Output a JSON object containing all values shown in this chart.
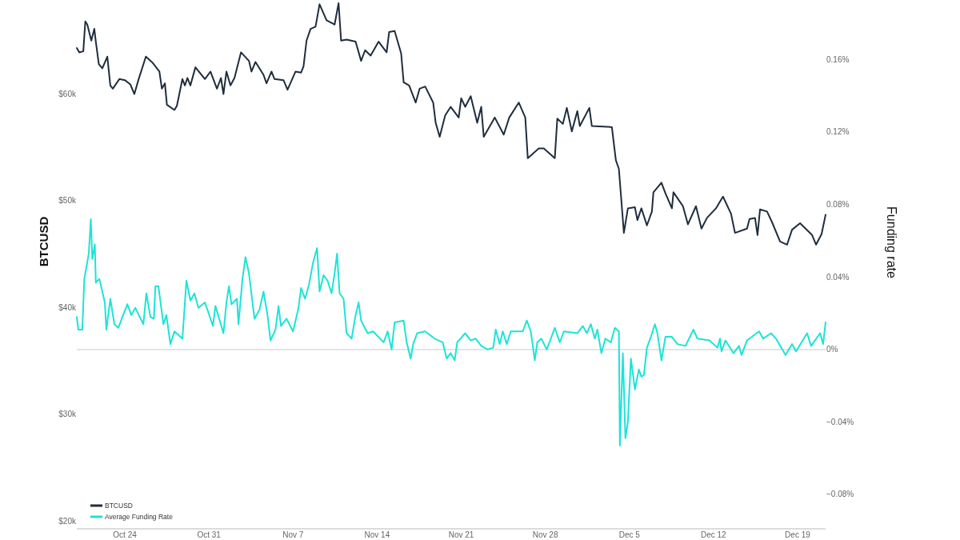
{
  "chart_data": {
    "type": "line",
    "ylabel": "BTCUSD",
    "y2label": "Funding rate",
    "legend": "bottom left",
    "xlim": [
      "--10-20T00:00",
      "--12-21T08:00"
    ],
    "xticks": [
      {
        "value": "--10-24",
        "label": "Oct 24"
      },
      {
        "value": "--10-31",
        "label": "Oct 31"
      },
      {
        "value": "--11-07",
        "label": "Nov 7"
      },
      {
        "value": "--11-14",
        "label": "Nov 14"
      },
      {
        "value": "--11-21",
        "label": "Nov 21"
      },
      {
        "value": "--11-28",
        "label": "Nov 28"
      },
      {
        "value": "--12-05",
        "label": "Dec 5"
      },
      {
        "value": "--12-12",
        "label": "Dec 12"
      },
      {
        "value": "--12-19",
        "label": "Dec 19"
      }
    ],
    "ylim": [
      19300,
      68800
    ],
    "yticks": [
      {
        "value": 20000,
        "label": "$20k"
      },
      {
        "value": 30000,
        "label": "$30k"
      },
      {
        "value": 40000,
        "label": "$40k"
      },
      {
        "value": 50000,
        "label": "$50k"
      },
      {
        "value": 60000,
        "label": "$60k"
      }
    ],
    "y2lim": [
      -0.099,
      0.193
    ],
    "y2ticks": [
      {
        "value": -0.08,
        "label": "−0.08%"
      },
      {
        "value": -0.04,
        "label": "−0.04%"
      },
      {
        "value": 0,
        "label": "0%"
      },
      {
        "value": 0.04,
        "label": "0.04%"
      },
      {
        "value": 0.08,
        "label": "0.08%"
      },
      {
        "value": 0.12,
        "label": "0.12%"
      },
      {
        "value": 0.16,
        "label": "0.16%"
      }
    ],
    "ref_lines": [
      {
        "axis": "y2",
        "value": 0,
        "color": "#e4e4e4"
      }
    ],
    "series": [
      {
        "name": "BTCUSD",
        "color": "#1f2d3d",
        "x": [
          "--10-20T00:00",
          "--10-20T05:00",
          "--10-20T13:00",
          "--10-20T17:00",
          "--10-20T21:00",
          "--10-21T05:00",
          "--10-21T11:00",
          "--10-21T14:00",
          "--10-21T20:00",
          "--10-22T03:00",
          "--10-22T13:00",
          "--10-22T19:00",
          "--10-23T00:00",
          "--10-23T13:00",
          "--10-24T00:00",
          "--10-24T11:00",
          "--10-24T19:00",
          "--10-25T03:00",
          "--10-25T18:00",
          "--10-26T08:00",
          "--10-26T21:00",
          "--10-27T02:00",
          "--10-27T08:00",
          "--10-27T12:00",
          "--10-28T03:00",
          "--10-28T08:00",
          "--10-28T19:00",
          "--10-29T00:00",
          "--10-29T05:00",
          "--10-29T11:00",
          "--10-29T21:00",
          "--10-30T16:00",
          "--10-31T03:00",
          "--10-31T16:00",
          "--11-01T00:00",
          "--11-01T05:00",
          "--11-01T11:00",
          "--11-01T19:00",
          "--11-02T03:00",
          "--11-02T16:00",
          "--11-03T08:00",
          "--11-03T13:00",
          "--11-03T21:00",
          "--11-04T13:00",
          "--11-04T19:00",
          "--11-05T05:00",
          "--11-05T11:00",
          "--11-06T05:00",
          "--11-06T13:00",
          "--11-07T05:00",
          "--11-07T16:00",
          "--11-07T21:00",
          "--11-08T03:00",
          "--11-08T11:00",
          "--11-08T21:00",
          "--11-09T05:00",
          "--11-09T19:00",
          "--11-10T11:00",
          "--11-10T19:00",
          "--11-11T00:00",
          "--11-11T11:00",
          "--11-12T05:00",
          "--11-12T16:00",
          "--11-13T00:00",
          "--11-13T11:00",
          "--11-14T03:00",
          "--11-14T19:00",
          "--11-15T00:00",
          "--11-15T11:00",
          "--11-16T00:00",
          "--11-16T05:00",
          "--11-16T16:00",
          "--11-17T05:00",
          "--11-17T13:00",
          "--11-18T00:00",
          "--11-18T16:00",
          "--11-18T21:00",
          "--11-19T05:00",
          "--11-19T16:00",
          "--11-20T03:00",
          "--11-20T19:00",
          "--11-21T00:00",
          "--11-21T08:00",
          "--11-21T19:00",
          "--11-22T08:00",
          "--11-22T16:00",
          "--11-22T21:00",
          "--11-23T19:00",
          "--11-24T13:00",
          "--11-25T00:00",
          "--11-25T19:00",
          "--11-26T08:00",
          "--11-26T13:00",
          "--11-27T11:00",
          "--11-27T21:00",
          "--11-28T19:00",
          "--11-29T00:00",
          "--11-29T11:00",
          "--11-29T19:00",
          "--11-30T05:00",
          "--11-30T16:00",
          "--11-30T21:00",
          "--12-01T16:00",
          "--12-01T21:00",
          "--12-03T13:00",
          "--12-03T21:00",
          "--12-04T03:00",
          "--12-04T13:00",
          "--12-04T21:00",
          "--12-05T11:00",
          "--12-05T16:00",
          "--12-06T00:00",
          "--12-06T11:00",
          "--12-06T21:00",
          "--12-07T00:00",
          "--12-07T16:00",
          "--12-08T00:00",
          "--12-08T13:00",
          "--12-08T16:00",
          "--12-09T11:00",
          "--12-09T21:00",
          "--12-10T13:00",
          "--12-11T00:00",
          "--12-11T11:00",
          "--12-12T05:00",
          "--12-12T19:00",
          "--12-13T11:00",
          "--12-13T19:00",
          "--12-14T19:00",
          "--12-15T00:00",
          "--12-15T11:00",
          "--12-15T16:00",
          "--12-15T21:00",
          "--12-16T11:00",
          "--12-16T21:00",
          "--12-17T13:00",
          "--12-18T03:00",
          "--12-18T13:00",
          "--12-19T05:00",
          "--12-20T05:00",
          "--12-20T13:00",
          "--12-21T00:00",
          "--12-21T08:00"
        ],
        "values": [
          64300,
          63900,
          64000,
          66800,
          66500,
          65000,
          66100,
          64900,
          62800,
          62400,
          63500,
          60800,
          60500,
          61400,
          61300,
          60900,
          60000,
          61300,
          63500,
          62900,
          62100,
          60500,
          61000,
          59000,
          58500,
          58900,
          61400,
          60800,
          61500,
          60800,
          62500,
          61400,
          62100,
          60500,
          61500,
          60000,
          62100,
          60800,
          61500,
          63900,
          63100,
          62100,
          63000,
          61800,
          61000,
          62100,
          61400,
          61300,
          60400,
          62100,
          62000,
          62600,
          65000,
          66100,
          66300,
          68400,
          66900,
          66500,
          68500,
          65000,
          65100,
          64900,
          63100,
          64100,
          63600,
          64900,
          63900,
          65800,
          65900,
          63800,
          61100,
          60800,
          59200,
          60500,
          60700,
          59200,
          57300,
          56000,
          58000,
          58800,
          57800,
          59600,
          58800,
          59800,
          57300,
          58800,
          56000,
          57800,
          56200,
          57800,
          59200,
          57800,
          54000,
          54900,
          54900,
          54000,
          57700,
          57200,
          58700,
          56500,
          58400,
          57000,
          58700,
          57000,
          56900,
          53800,
          53000,
          47000,
          49300,
          49400,
          48200,
          49300,
          47700,
          49000,
          50800,
          51700,
          50700,
          49300,
          50800,
          49500,
          47800,
          49500,
          47400,
          48400,
          49300,
          50400,
          48800,
          47000,
          47400,
          48300,
          48400,
          46800,
          49200,
          49000,
          48000,
          46200,
          45900,
          47300,
          47900,
          46800,
          45900,
          46900,
          48700
        ]
      },
      {
        "name": "Average Funding Rate",
        "color": "#1ce4d6",
        "axis": "y2",
        "x": [
          "--10-20T00:00",
          "--10-20T03:00",
          "--10-20T11:00",
          "--10-20T15:00",
          "--10-21T00:00",
          "--10-21T04:00",
          "--10-21T07:00",
          "--10-21T12:00",
          "--10-21T14:00",
          "--10-21T21:00",
          "--10-22T08:00",
          "--10-22T11:00",
          "--10-22T19:00",
          "--10-23T03:00",
          "--10-23T11:00",
          "--10-24T05:00",
          "--10-24T13:00",
          "--10-24T21:00",
          "--10-25T13:00",
          "--10-25T19:00",
          "--10-26T03:00",
          "--10-26T10:00",
          "--10-26T13:00",
          "--10-26T19:00",
          "--10-27T05:00",
          "--10-27T11:00",
          "--10-27T19:00",
          "--10-28T03:00",
          "--10-28T19:00",
          "--10-29T03:00",
          "--10-29T11:00",
          "--10-29T19:00",
          "--10-30T03:00",
          "--10-30T16:00",
          "--10-31T08:00",
          "--10-31T13:00",
          "--11-01T05:00",
          "--11-01T11:00",
          "--11-01T16:00",
          "--11-01T21:00",
          "--11-02T08:00",
          "--11-02T11:00",
          "--11-02T19:00",
          "--11-03T01:00",
          "--11-03T08:00",
          "--11-03T19:00",
          "--11-04T05:00",
          "--11-04T13:00",
          "--11-04T21:00",
          "--11-05T03:00",
          "--11-05T13:00",
          "--11-05T19:00",
          "--11-06T00:00",
          "--11-06T11:00",
          "--11-07T00:00",
          "--11-07T11:00",
          "--11-07T16:00",
          "--11-08T00:00",
          "--11-08T08:00",
          "--11-08T16:00",
          "--11-09T00:00",
          "--11-09T05:00",
          "--11-09T13:00",
          "--11-09T21:00",
          "--11-10T05:00",
          "--11-10T11:00",
          "--11-10T16:00",
          "--11-10T21:00",
          "--11-11T05:00",
          "--11-11T11:00",
          "--11-11T21:00",
          "--11-12T05:00",
          "--11-12T11:00",
          "--11-12T16:00",
          "--11-13T05:00",
          "--11-13T16:00",
          "--11-14T13:00",
          "--11-14T21:00",
          "--11-15T05:00",
          "--11-15T11:00",
          "--11-16T05:00",
          "--11-16T11:00",
          "--11-16T19:00",
          "--11-17T00:00",
          "--11-17T08:00",
          "--11-18T00:00",
          "--11-18T19:00",
          "--11-19T11:00",
          "--11-19T19:00",
          "--11-20T03:00",
          "--11-20T11:00",
          "--11-20T16:00",
          "--11-21T08:00",
          "--11-21T19:00",
          "--11-22T05:00",
          "--11-22T16:00",
          "--11-23T05:00",
          "--11-23T16:00",
          "--11-23T21:00",
          "--11-24T05:00",
          "--11-24T11:00",
          "--11-24T19:00",
          "--11-25T03:00",
          "--11-26T03:00",
          "--11-26T11:00",
          "--11-26T19:00",
          "--11-27T03:00",
          "--11-27T08:00",
          "--11-27T16:00",
          "--11-28T03:00",
          "--11-28T19:00",
          "--11-29T05:00",
          "--11-29T13:00",
          "--11-30T16:00",
          "--12-01T03:00",
          "--12-01T11:00",
          "--12-01T19:00",
          "--12-02T03:00",
          "--12-02T08:00",
          "--12-02T16:00",
          "--12-03T00:00",
          "--12-03T11:00",
          "--12-03T19:00",
          "--12-04T03:00",
          "--12-04T05:00",
          "--12-04T11:00",
          "--12-04T16:00",
          "--12-04T21:00",
          "--12-05T03:00",
          "--12-05T11:00",
          "--12-05T19:00",
          "--12-06T00:00",
          "--12-06T05:00",
          "--12-06T11:00",
          "--12-06T19:00",
          "--12-07T03:00",
          "--12-07T08:00",
          "--12-07T16:00",
          "--12-08T00:00",
          "--12-08T13:00",
          "--12-09T00:00",
          "--12-09T16:00",
          "--12-10T08:00",
          "--12-10T16:00",
          "--12-11T16:00",
          "--12-12T08:00",
          "--12-12T13:00",
          "--12-12T16:00",
          "--12-13T00:00",
          "--12-13T16:00",
          "--12-14T03:00",
          "--12-14T08:00",
          "--12-14T19:00",
          "--12-15T19:00",
          "--12-16T03:00",
          "--12-16T19:00",
          "--12-17T05:00",
          "--12-18T00:00",
          "--12-18T13:00",
          "--12-18T21:00",
          "--12-19T19:00",
          "--12-20T03:00",
          "--12-20T21:00",
          "--12-21T03:00",
          "--12-21T08:00"
        ],
        "values": [
          0.018,
          0.011,
          0.011,
          0.039,
          0.053,
          0.072,
          0.05,
          0.058,
          0.037,
          0.039,
          0.026,
          0.011,
          0.028,
          0.014,
          0.012,
          0.025,
          0.019,
          0.023,
          0.014,
          0.031,
          0.018,
          0.017,
          0.035,
          0.035,
          0.014,
          0.019,
          0.003,
          0.01,
          0.006,
          0.038,
          0.027,
          0.031,
          0.023,
          0.026,
          0.013,
          0.024,
          0.009,
          0.026,
          0.035,
          0.025,
          0.028,
          0.014,
          0.039,
          0.051,
          0.042,
          0.017,
          0.022,
          0.032,
          0.019,
          0.005,
          0.011,
          0.024,
          0.013,
          0.017,
          0.01,
          0.023,
          0.034,
          0.028,
          0.036,
          0.048,
          0.056,
          0.032,
          0.041,
          0.038,
          0.031,
          0.042,
          0.053,
          0.031,
          0.028,
          0.009,
          0.006,
          0.019,
          0.026,
          0.016,
          0.009,
          0.01,
          0.004,
          0.01,
          0,
          0.015,
          0.016,
          0.004,
          -0.005,
          0.003,
          0.009,
          0.01,
          0.006,
          0.004,
          -0.005,
          -0.002,
          -0.006,
          0.004,
          0.009,
          0.005,
          0.006,
          0.002,
          0,
          0.001,
          0.011,
          0.003,
          0.01,
          0.003,
          0.01,
          0.01,
          0.016,
          0.01,
          -0.006,
          0.004,
          0.006,
          0,
          0.012,
          0.004,
          0.01,
          0.009,
          0.013,
          0.009,
          0.014,
          0.006,
          0.011,
          -0.002,
          0.006,
          0.004,
          0.012,
          0.01,
          -0.053,
          -0.002,
          -0.049,
          -0.04,
          -0.005,
          -0.022,
          -0.011,
          -0.015,
          -0.014,
          0.001,
          0.007,
          0.014,
          0.009,
          -0.006,
          0.007,
          0.007,
          0.003,
          0.002,
          0.011,
          0.006,
          0.005,
          0.001,
          0.006,
          -0.001,
          0.005,
          -0.002,
          0.002,
          -0.003,
          0.005,
          0.01,
          0.006,
          0.009,
          0.006,
          -0.003,
          0.003,
          -0.001,
          0.009,
          0.002,
          0.009,
          0.003,
          0.015
        ]
      }
    ]
  }
}
